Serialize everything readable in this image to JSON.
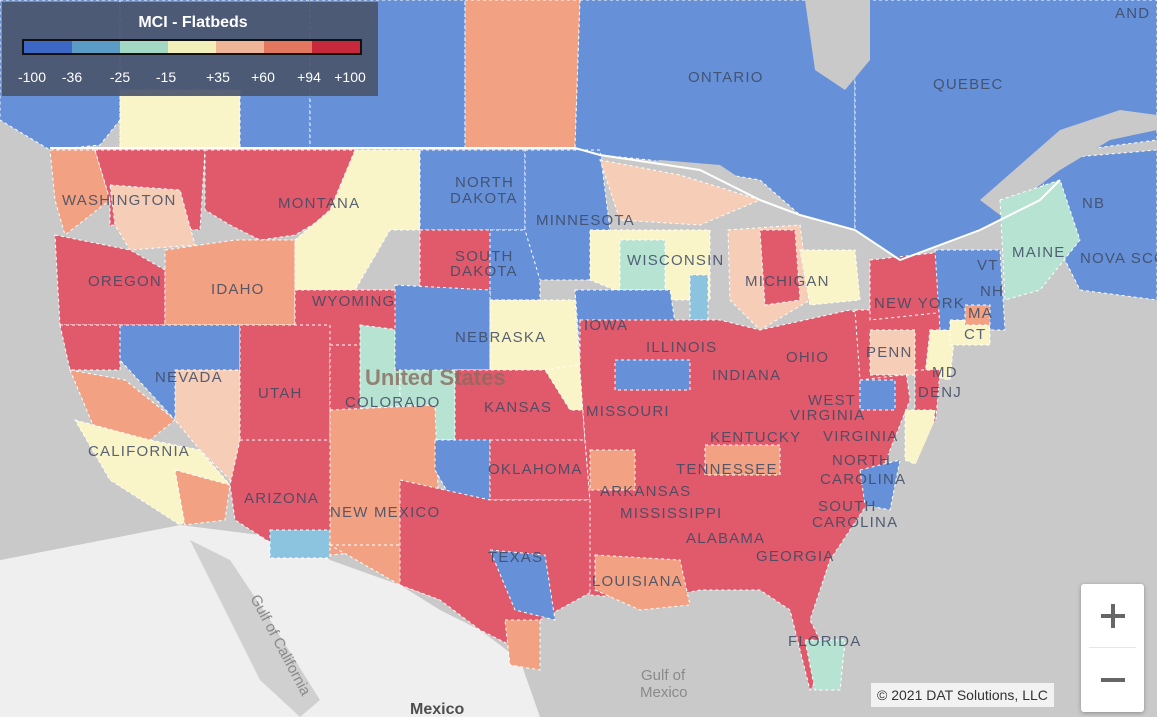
{
  "legend": {
    "title": "MCI - Flatbeds",
    "swatches": [
      "#3c67c4",
      "#5b9cc7",
      "#a3d8c4",
      "#f3efba",
      "#eeb697",
      "#e2765f",
      "#c7283b"
    ],
    "ticks": [
      "-100",
      "-36",
      "-25",
      "-15",
      "+35",
      "+60",
      "+94",
      "+100"
    ]
  },
  "palette": {
    "land": "#f1f1f1",
    "water": "#c9c9c9",
    "deep_blue": "#6690d8",
    "light_blue": "#8cc4df",
    "teal": "#b7e3d3",
    "yellow": "#faf5c8",
    "peach": "#f6cdb6",
    "orange": "#f2a283",
    "red": "#e05a6c"
  },
  "labels": {
    "ontario": "ONTARIO",
    "quebec": "QUEBEC",
    "nb": "NB",
    "nova_scotia": "NOVA SCO",
    "pei": "AND",
    "washington": "WASHINGTON",
    "oregon": "OREGON",
    "idaho": "IDAHO",
    "montana": "MONTANA",
    "wyoming": "WYOMING",
    "nevada": "NEVADA",
    "utah": "UTAH",
    "california": "CALIFORNIA",
    "arizona": "ARIZONA",
    "colorado": "COLORADO",
    "new_mexico": "NEW MEXICO",
    "north_dakota_1": "NORTH",
    "north_dakota_2": "DAKOTA",
    "south_dakota_1": "SOUTH",
    "south_dakota_2": "DAKOTA",
    "nebraska": "NEBRASKA",
    "kansas": "KANSAS",
    "oklahoma": "OKLAHOMA",
    "texas": "TEXAS",
    "minnesota": "MINNESOTA",
    "iowa": "IOWA",
    "missouri": "MISSOURI",
    "arkansas": "ARKANSAS",
    "louisiana": "LOUISIANA",
    "wisconsin": "WISCONSIN",
    "illinois": "ILLINOIS",
    "michigan": "MICHIGAN",
    "indiana": "INDIANA",
    "ohio": "OHIO",
    "kentucky": "KENTUCKY",
    "tennessee": "TENNESSEE",
    "mississippi": "MISSISSIPPI",
    "alabama": "ALABAMA",
    "georgia": "GEORGIA",
    "florida": "FLORIDA",
    "west_virginia_1": "WEST",
    "west_virginia_2": "VIRGINIA",
    "virginia": "VIRGINIA",
    "north_carolina_1": "NORTH",
    "north_carolina_2": "CAROLINA",
    "south_carolina_1": "SOUTH",
    "south_carolina_2": "CAROLINA",
    "penn": "PENN",
    "new_york": "NEW YORK",
    "maine": "MAINE",
    "vt": "VT",
    "nh": "NH",
    "ma": "MA",
    "ct": "CT",
    "de_nj": "DENJ",
    "md": "MD",
    "united_states": "United States",
    "gulf_of_mexico_1": "Gulf of",
    "gulf_of_mexico_2": "Mexico",
    "gulf_of_california": "Gulf of California",
    "mexico": "Mexico"
  },
  "copyright": "© 2021 DAT Solutions, LLC",
  "zoom": {
    "in_icon": "plus-icon",
    "out_icon": "minus-icon"
  }
}
